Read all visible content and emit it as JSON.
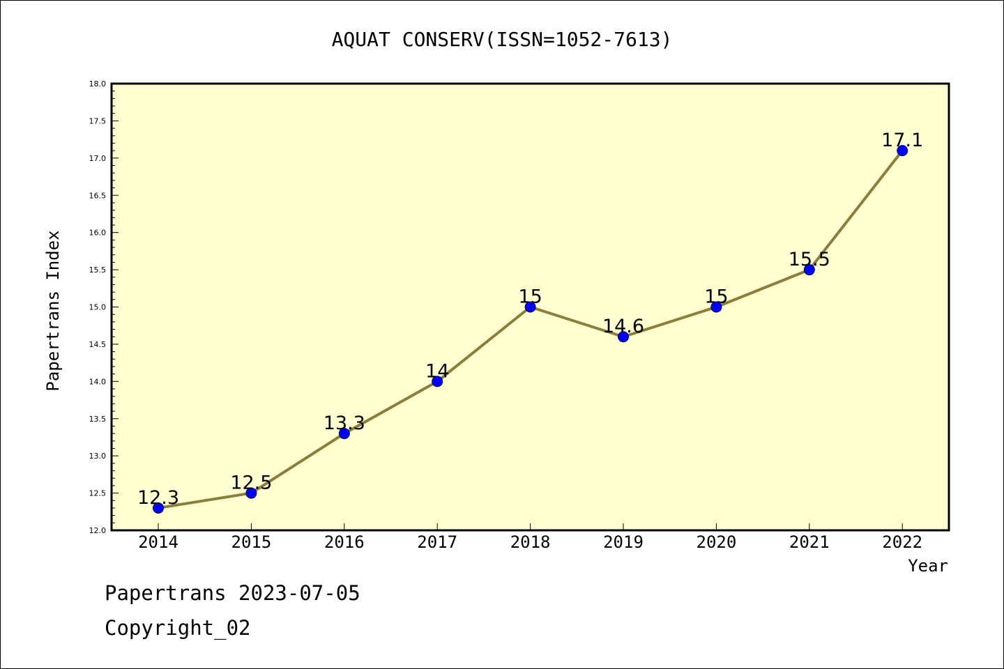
{
  "chart_data": {
    "type": "line",
    "title": "AQUAT CONSERV(ISSN=1052-7613)",
    "xlabel": "Year",
    "ylabel": "Papertrans Index",
    "x": [
      "2014",
      "2015",
      "2016",
      "2017",
      "2018",
      "2019",
      "2020",
      "2021",
      "2022"
    ],
    "series": [
      {
        "values": [
          12.3,
          12.5,
          13.3,
          14.0,
          15.0,
          14.6,
          15.0,
          15.5,
          17.1
        ],
        "data_labels": [
          "12.3",
          "12.5",
          "13.3",
          "14",
          "15",
          "14.6",
          "15",
          "15.5",
          "17.1"
        ]
      }
    ],
    "ylim": [
      12.0,
      18.0
    ],
    "yticks": [
      "12.0",
      "12.5",
      "13.0",
      "13.5",
      "14.0",
      "14.5",
      "15.0",
      "15.5",
      "16.0",
      "16.5",
      "17.0",
      "17.5",
      "18.0"
    ],
    "grid": false,
    "colors": {
      "plot_background": "#ffffd0",
      "line": "#8b7d3a",
      "marker": "#0000ff",
      "marker_edge": "#000066"
    }
  },
  "footer": {
    "line1": "Papertrans 2023-07-05",
    "line2": "Copyright_02"
  }
}
